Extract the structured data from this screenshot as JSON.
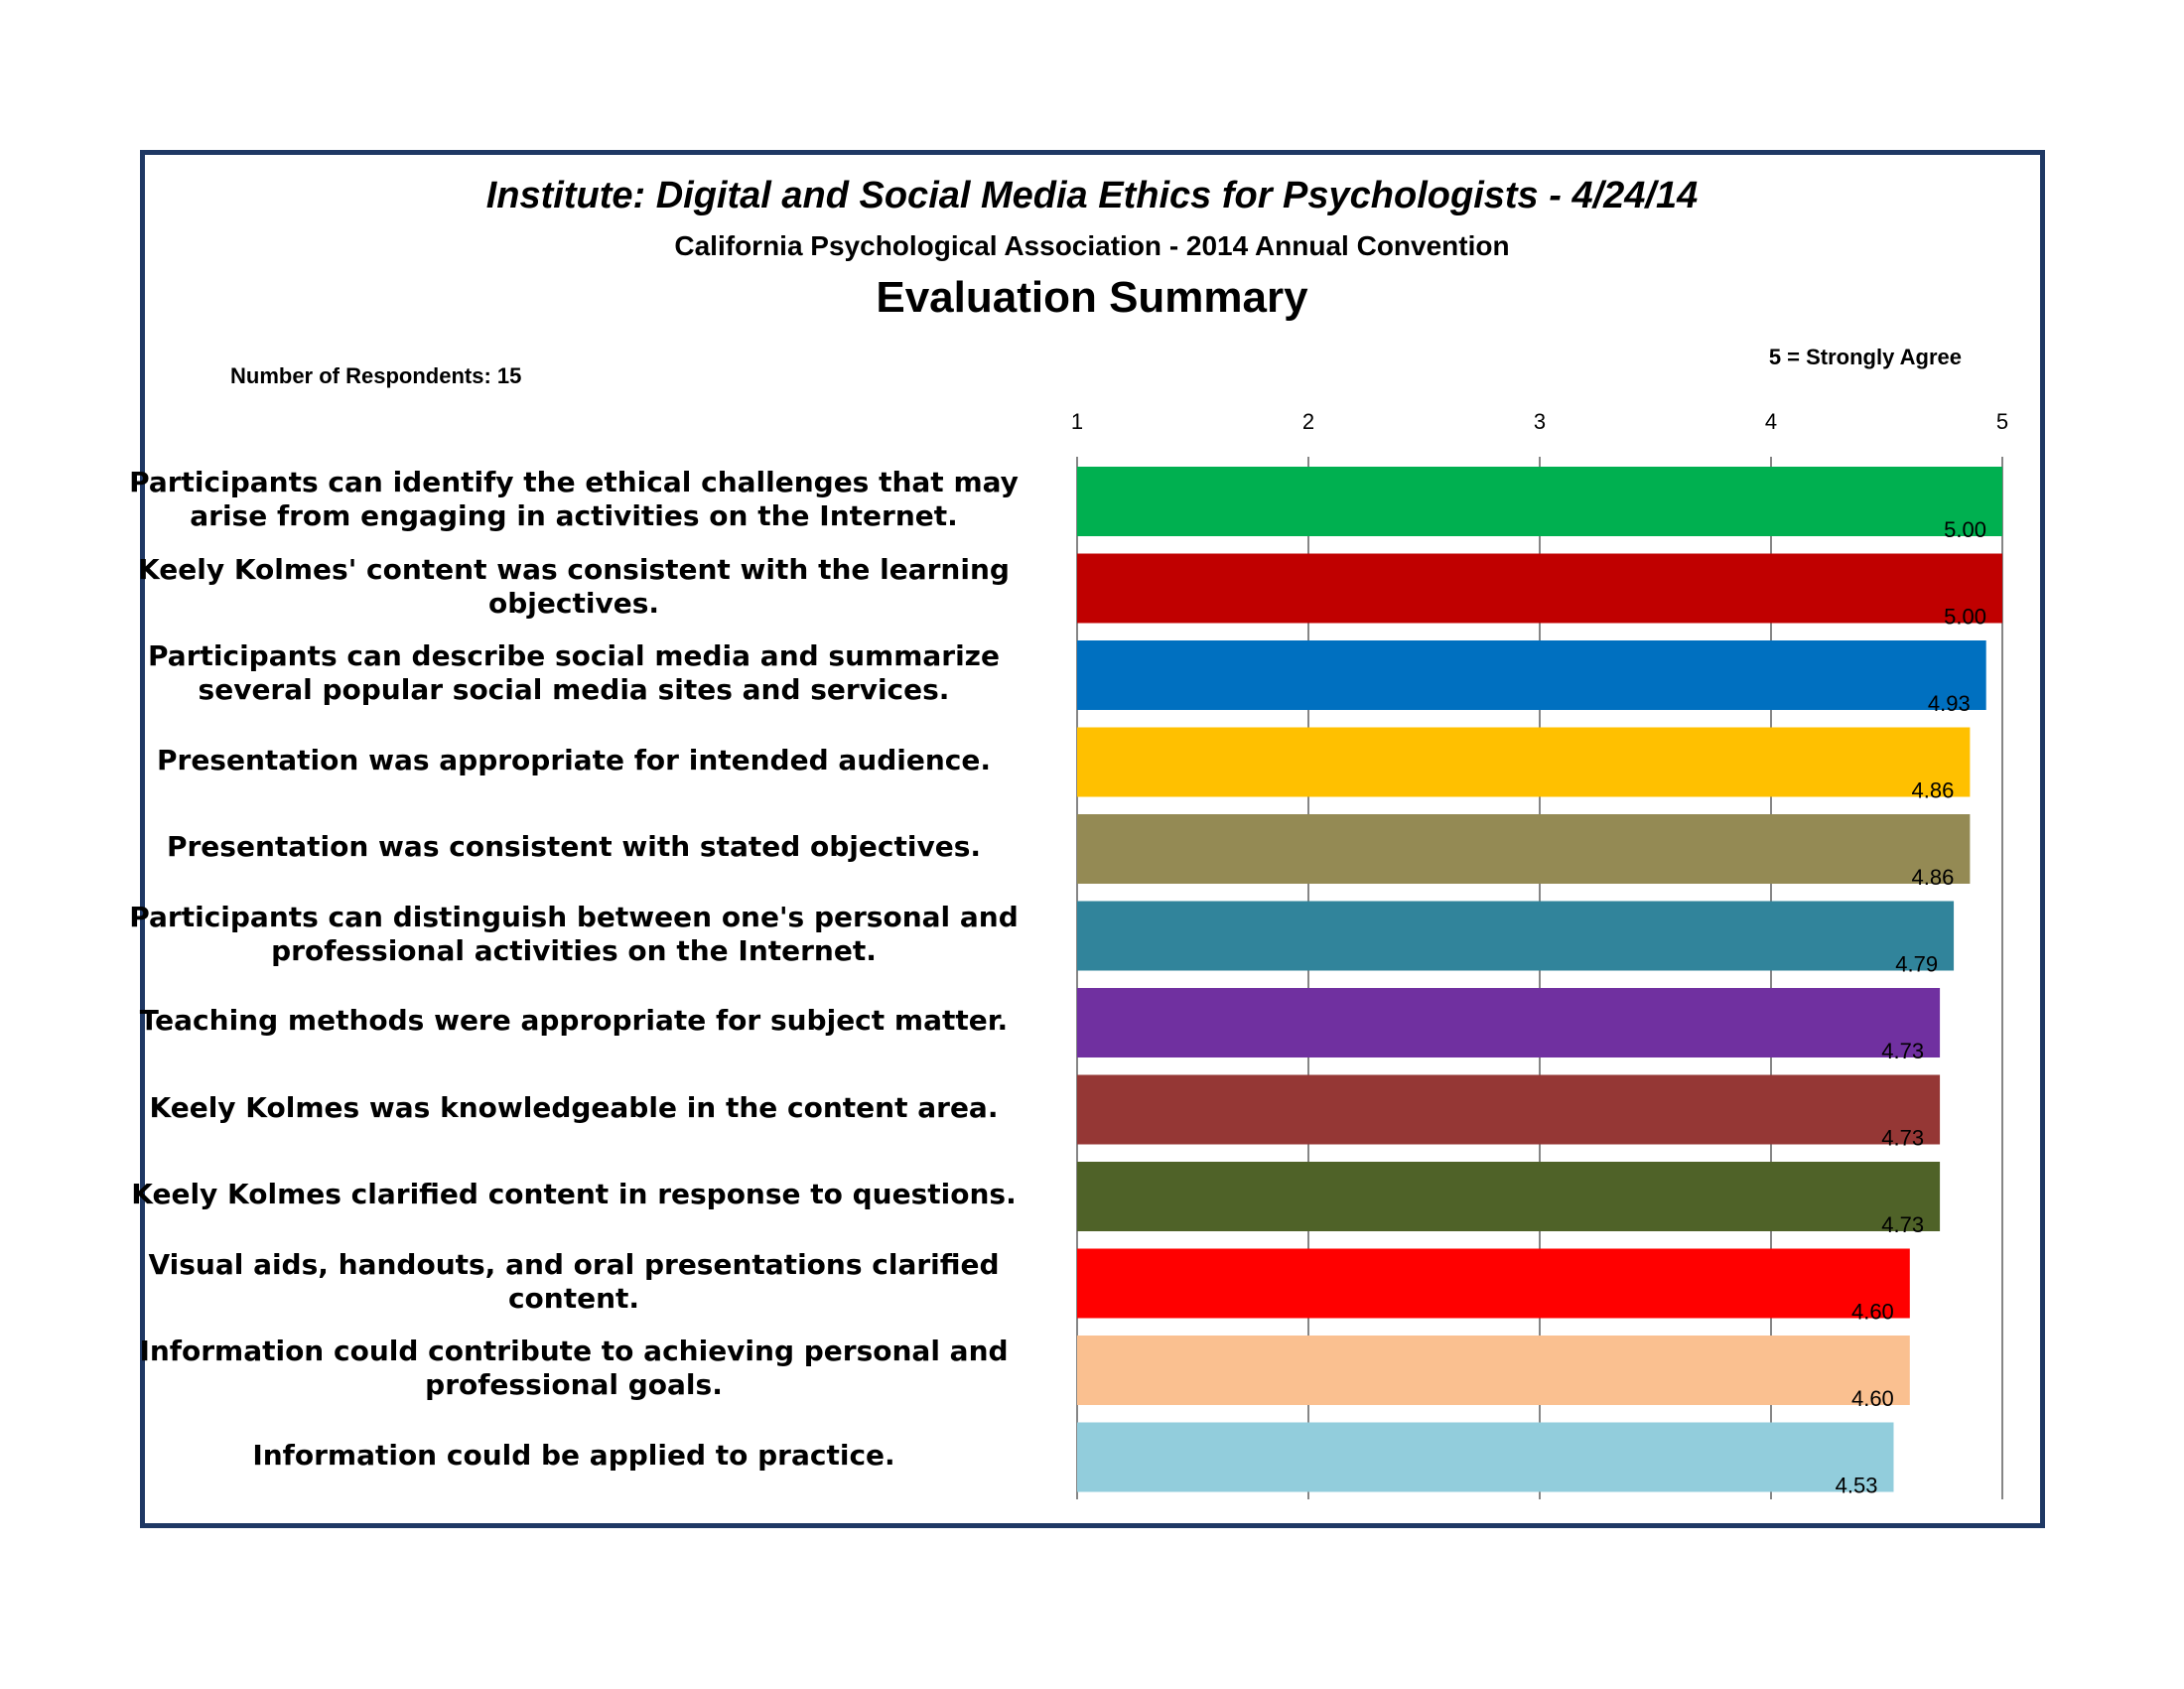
{
  "chart_data": {
    "type": "bar",
    "orientation": "horizontal",
    "title": "Institute: Digital and Social Media Ethics for Psychologists - 4/24/14",
    "subtitle": "California Psychological Association - 2014 Annual Convention",
    "heading": "Evaluation Summary",
    "respondents_note": "Number of Respondents: 15",
    "scale_note": "5 = Strongly Agree",
    "xlim": [
      1,
      5
    ],
    "x_ticks": [
      "1",
      "2",
      "3",
      "4",
      "5"
    ],
    "x_axis_position": "top",
    "grid": true,
    "categories": [
      "Participants can identify the ethical challenges that may arise from engaging in activities on the Internet.",
      "Keely Kolmes' content was consistent with the learning objectives.",
      "Participants can describe social media and summarize several popular social media sites and services.",
      "Presentation was appropriate for intended audience.",
      "Presentation was consistent with stated objectives.",
      "Participants can distinguish between one's personal and professional activities on the Internet.",
      "Teaching methods were appropriate for subject matter.",
      "Keely Kolmes was knowledgeable in the content area.",
      "Keely Kolmes clarified content in response to questions.",
      "Visual aids, handouts, and oral presentations clarified content.",
      "Information could contribute to achieving personal and professional goals.",
      "Information could be applied to practice."
    ],
    "values": [
      5.0,
      5.0,
      4.93,
      4.86,
      4.86,
      4.79,
      4.73,
      4.73,
      4.73,
      4.6,
      4.6,
      4.53
    ],
    "value_labels": [
      "5.00",
      "5.00",
      "4.93",
      "4.86",
      "4.86",
      "4.79",
      "4.73",
      "4.73",
      "4.73",
      "4.60",
      "4.60",
      "4.53"
    ],
    "colors": [
      "#00b050",
      "#c00000",
      "#0070c0",
      "#ffc000",
      "#948a54",
      "#31849b",
      "#7030a0",
      "#953735",
      "#4f6228",
      "#ff0000",
      "#fac090",
      "#92cddc"
    ]
  }
}
